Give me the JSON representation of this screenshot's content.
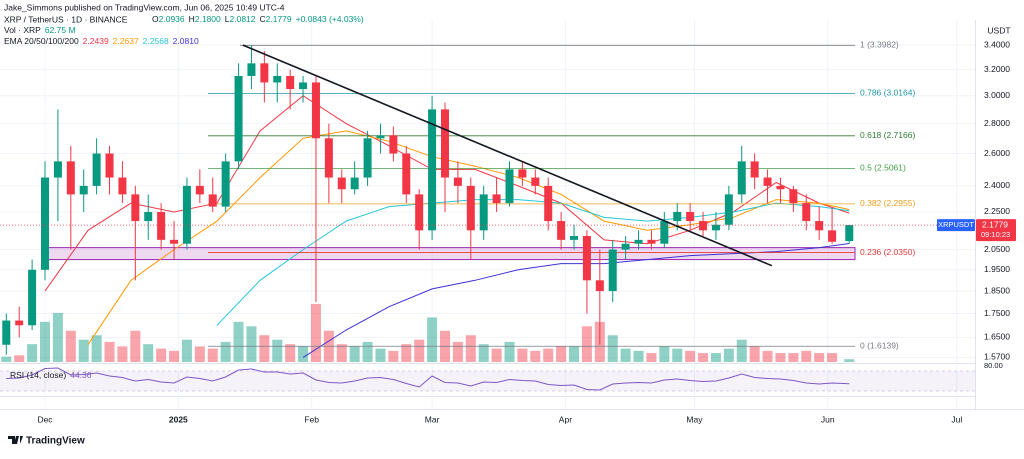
{
  "header": {
    "publisher": "Jake_Simmons published on TradingView.com, Jun 06, 2025 10:49 UTC-4",
    "symbol": "XRP / TetherUS · 1D · BINANCE",
    "ohlc": [
      {
        "k": "O",
        "v": "2.0936"
      },
      {
        "k": "H",
        "v": "2.1800"
      },
      {
        "k": "L",
        "v": "2.0812"
      },
      {
        "k": "C",
        "v": "2.1779"
      }
    ],
    "change": "+0.0843 (+4.03%)",
    "volume_label": "Vol · XRP",
    "volume_value": "62.75 M",
    "currency": "USDT"
  },
  "chart_data": {
    "type": "candlestick",
    "log_scale": true,
    "grid": true,
    "up_color": "#089981",
    "down_color": "#f23645",
    "xlim": [
      0,
      226
    ],
    "ylim": [
      1.56,
      3.6
    ],
    "xticks": [
      {
        "value": 10,
        "label": "Dec"
      },
      {
        "value": 41,
        "label": "2025"
      },
      {
        "value": 72,
        "label": "Feb"
      },
      {
        "value": 100,
        "label": "Mar"
      },
      {
        "value": 131,
        "label": "Apr"
      },
      {
        "value": 161,
        "label": "May"
      },
      {
        "value": 192,
        "label": "Jun"
      },
      {
        "value": 222,
        "label": "Jul"
      }
    ],
    "yticks": [
      {
        "value": 3.4,
        "label": "3.4000"
      },
      {
        "value": 3.2,
        "label": "3.2000"
      },
      {
        "value": 3,
        "label": "3.0000"
      },
      {
        "value": 2.8,
        "label": "2.8000"
      },
      {
        "value": 2.6,
        "label": "2.6000"
      },
      {
        "value": 2.4,
        "label": "2.4000"
      },
      {
        "value": 2.25,
        "label": "2.2500"
      },
      {
        "value": 2.05,
        "label": "2.0500"
      },
      {
        "value": 1.95,
        "label": "1.9500"
      },
      {
        "value": 1.85,
        "label": "1.8500"
      },
      {
        "value": 1.75,
        "label": "1.7500"
      },
      {
        "value": 1.65,
        "label": "1.6500"
      },
      {
        "value": 1.57,
        "label": "1.5700"
      }
    ],
    "x": [
      1,
      4,
      7,
      10,
      13,
      16,
      19,
      22,
      25,
      28,
      31,
      34,
      37,
      40,
      43,
      46,
      49,
      52,
      55,
      58,
      61,
      64,
      67,
      70,
      73,
      76,
      79,
      82,
      85,
      88,
      91,
      94,
      97,
      100,
      103,
      106,
      109,
      112,
      115,
      118,
      121,
      124,
      127,
      130,
      133,
      136,
      139,
      142,
      145,
      148,
      151,
      154,
      157,
      160,
      163,
      166,
      169,
      172,
      175,
      178,
      181,
      184,
      187,
      190,
      193,
      197
    ],
    "open": [
      1.62,
      1.72,
      1.7,
      1.95,
      2.45,
      2.55,
      2.35,
      2.4,
      2.6,
      2.45,
      2.35,
      2.2,
      2.25,
      2.1,
      2.08,
      2.4,
      2.35,
      2.28,
      2.55,
      3.15,
      3.25,
      3.1,
      3.15,
      3.05,
      3.1,
      2.7,
      2.45,
      2.38,
      2.45,
      2.7,
      2.72,
      2.6,
      2.35,
      2.15,
      2.9,
      2.45,
      2.4,
      2.15,
      2.35,
      2.3,
      2.5,
      2.45,
      2.4,
      2.2,
      2.1,
      2.12,
      1.9,
      1.85,
      2.05,
      2.08,
      2.1,
      2.08,
      2.2,
      2.25,
      2.2,
      2.15,
      2.18,
      2.35,
      2.55,
      2.45,
      2.4,
      2.38,
      2.3,
      2.2,
      2.15,
      2.0936
    ],
    "high": [
      1.75,
      1.78,
      2.0,
      2.55,
      2.9,
      2.65,
      2.5,
      2.7,
      2.65,
      2.55,
      2.4,
      2.35,
      2.3,
      2.2,
      2.45,
      2.5,
      2.45,
      2.6,
      3.25,
      3.4,
      3.35,
      3.25,
      3.2,
      3.15,
      3.15,
      2.8,
      2.5,
      2.55,
      2.75,
      2.8,
      2.78,
      2.65,
      2.38,
      3.0,
      2.95,
      2.55,
      2.45,
      2.4,
      2.45,
      2.55,
      2.55,
      2.5,
      2.45,
      2.25,
      2.18,
      2.15,
      2.05,
      2.1,
      2.12,
      2.15,
      2.15,
      2.25,
      2.3,
      2.3,
      2.25,
      2.25,
      2.4,
      2.65,
      2.6,
      2.5,
      2.45,
      2.4,
      2.35,
      2.28,
      2.27,
      2.18
    ],
    "low": [
      1.58,
      1.65,
      1.68,
      1.9,
      2.2,
      2.05,
      2.25,
      2.35,
      2.35,
      2.3,
      1.9,
      2.1,
      2.05,
      2.0,
      2.05,
      2.3,
      2.25,
      2.25,
      2.5,
      3.05,
      2.95,
      2.95,
      2.9,
      2.95,
      1.8,
      2.3,
      2.3,
      2.35,
      2.4,
      2.6,
      2.55,
      2.3,
      2.05,
      2.1,
      2.25,
      2.3,
      2.0,
      2.1,
      2.25,
      2.28,
      2.4,
      2.35,
      2.15,
      2.05,
      2.05,
      1.75,
      1.62,
      1.8,
      2.0,
      2.05,
      2.05,
      2.06,
      2.15,
      2.15,
      2.12,
      2.1,
      2.15,
      2.3,
      2.38,
      2.3,
      2.3,
      2.25,
      2.15,
      2.1,
      2.08,
      2.0812
    ],
    "close": [
      1.72,
      1.7,
      1.95,
      2.45,
      2.55,
      2.35,
      2.4,
      2.6,
      2.45,
      2.35,
      2.2,
      2.25,
      2.1,
      2.08,
      2.4,
      2.35,
      2.28,
      2.55,
      3.15,
      3.25,
      3.1,
      3.15,
      3.05,
      3.1,
      2.7,
      2.45,
      2.38,
      2.45,
      2.7,
      2.72,
      2.6,
      2.35,
      2.15,
      2.9,
      2.45,
      2.4,
      2.15,
      2.35,
      2.3,
      2.5,
      2.45,
      2.4,
      2.2,
      2.1,
      2.12,
      1.9,
      1.85,
      2.05,
      2.08,
      2.1,
      2.08,
      2.2,
      2.25,
      2.2,
      2.15,
      2.18,
      2.35,
      2.55,
      2.45,
      2.4,
      2.38,
      2.3,
      2.2,
      2.15,
      2.09,
      2.1779
    ],
    "volume": [
      120,
      150,
      400,
      900,
      1100,
      700,
      500,
      600,
      450,
      350,
      700,
      400,
      300,
      250,
      500,
      350,
      300,
      450,
      900,
      800,
      600,
      500,
      400,
      350,
      1300,
      700,
      400,
      350,
      450,
      300,
      250,
      400,
      500,
      1000,
      700,
      450,
      600,
      400,
      300,
      450,
      300,
      250,
      300,
      350,
      350,
      800,
      900,
      600,
      300,
      250,
      200,
      350,
      300,
      250,
      200,
      200,
      300,
      500,
      350,
      250,
      200,
      200,
      250,
      200,
      200,
      62.75
    ],
    "ema": {
      "label": "EMA 20/50/100/200",
      "x": [
        0,
        10,
        20,
        30,
        40,
        50,
        60,
        70,
        80,
        90,
        100,
        110,
        120,
        130,
        140,
        150,
        160,
        170,
        180,
        190,
        197
      ],
      "lines": [
        {
          "color": "#f23645",
          "last": "2.2439",
          "values": [
            null,
            1.85,
            2.15,
            2.3,
            2.25,
            2.3,
            2.75,
            3.0,
            2.8,
            2.65,
            2.5,
            2.5,
            2.4,
            2.3,
            2.1,
            2.08,
            2.15,
            2.25,
            2.42,
            2.3,
            2.2439
          ]
        },
        {
          "color": "#ff9800",
          "last": "2.2637",
          "values": [
            null,
            null,
            1.62,
            1.9,
            2.05,
            2.2,
            2.45,
            2.7,
            2.75,
            2.68,
            2.58,
            2.52,
            2.45,
            2.35,
            2.2,
            2.15,
            2.18,
            2.22,
            2.32,
            2.3,
            2.2637
          ]
        },
        {
          "color": "#26c6da",
          "last": "2.2568",
          "values": [
            null,
            null,
            null,
            null,
            null,
            1.7,
            1.9,
            2.05,
            2.2,
            2.28,
            2.3,
            2.32,
            2.32,
            2.3,
            2.22,
            2.2,
            2.22,
            2.25,
            2.3,
            2.28,
            2.2568
          ]
        },
        {
          "color": "#3d32d6",
          "last": "2.0810",
          "values": [
            null,
            null,
            null,
            null,
            null,
            null,
            null,
            1.57,
            1.68,
            1.78,
            1.86,
            1.9,
            1.95,
            1.98,
            1.98,
            2.0,
            2.02,
            2.03,
            2.04,
            2.06,
            2.081
          ]
        }
      ]
    },
    "fib_levels": [
      {
        "label": "1 (3.3982)",
        "value": 3.3982,
        "color": "#787b86"
      },
      {
        "label": "0.786 (3.0164)",
        "value": 3.0164,
        "color": "#2196a3"
      },
      {
        "label": "0.618 (2.7166)",
        "value": 2.7166,
        "color": "#2e7d32"
      },
      {
        "label": "0.5 (2.5061)",
        "value": 2.5061,
        "color": "#43a047"
      },
      {
        "label": "0.382 (2.2955)",
        "value": 2.2955,
        "color": "#f0a020"
      },
      {
        "label": "0.236 (2.0350)",
        "value": 2.035,
        "color": "#e53935"
      },
      {
        "label": "0 (1.6139)",
        "value": 1.6139,
        "color": "#787b86"
      }
    ],
    "support_zone": [
      2.0,
      2.06
    ],
    "trendline": {
      "x": [
        56,
        179
      ],
      "y": [
        3.4,
        1.97
      ]
    },
    "last_price": {
      "symbol": "XRPUSDT",
      "value": 2.1779,
      "countdown": "09:10:23",
      "color": "#f23645",
      "symbol_color": "#2962ff"
    },
    "rsi": {
      "label": "RSI (14, close)",
      "last": "44.36",
      "color": "#7e57c2",
      "ylim": [
        20,
        84
      ],
      "band": [
        30,
        70
      ],
      "yticks": [
        {
          "value": 80,
          "label": "80.00"
        }
      ],
      "values": [
        55,
        56,
        62,
        75,
        76,
        62,
        63,
        66,
        60,
        57,
        50,
        53,
        48,
        46,
        58,
        55,
        50,
        58,
        72,
        74,
        68,
        68,
        64,
        66,
        52,
        47,
        46,
        50,
        56,
        57,
        53,
        45,
        38,
        60,
        47,
        46,
        40,
        48,
        47,
        53,
        51,
        50,
        43,
        41,
        42,
        33,
        32,
        44,
        46,
        47,
        46,
        52,
        54,
        51,
        49,
        50,
        56,
        64,
        57,
        55,
        54,
        51,
        46,
        44,
        46,
        44.36
      ]
    }
  },
  "footer": {
    "logo": "TradingView"
  }
}
